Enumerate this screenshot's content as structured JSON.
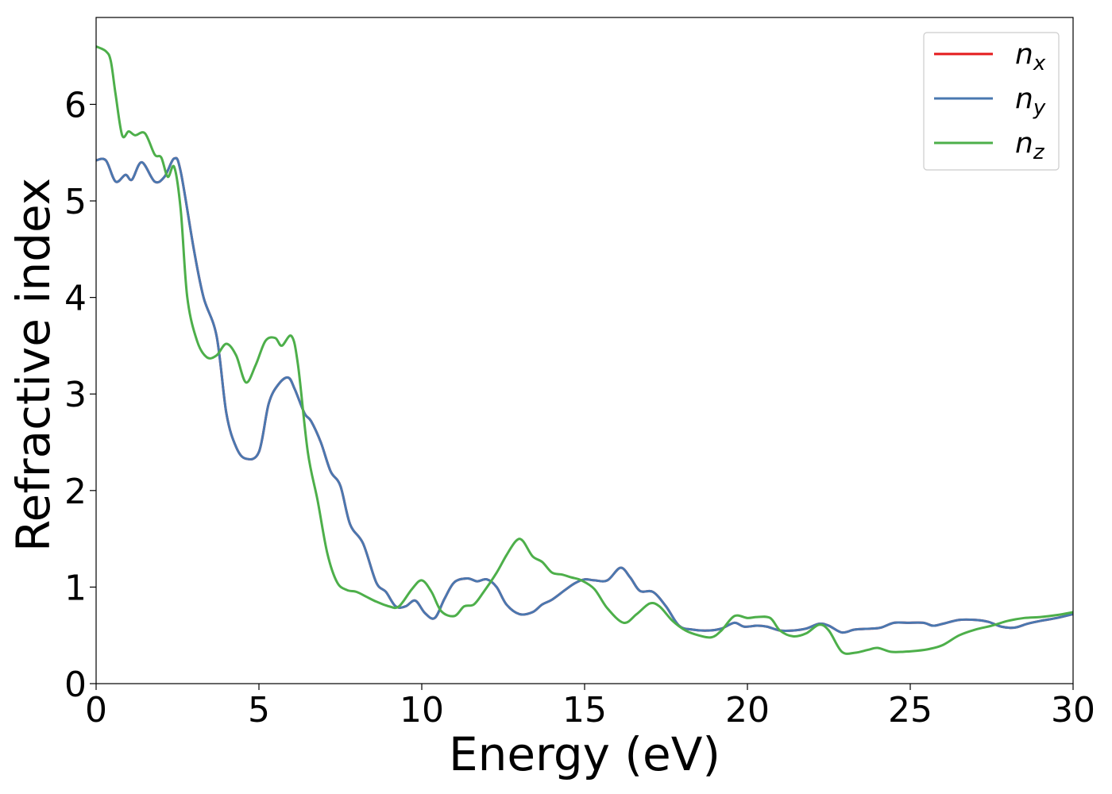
{
  "chart_data": {
    "type": "line",
    "xlabel": "Energy (eV)",
    "ylabel": "Refractive index",
    "xlim": [
      0,
      30
    ],
    "ylim": [
      0,
      6.9
    ],
    "grid": false,
    "legend_position": "top-right",
    "x_ticks": [
      0,
      5,
      10,
      15,
      20,
      25,
      30
    ],
    "y_ticks": [
      0,
      1,
      2,
      3,
      4,
      5,
      6
    ],
    "x_tick_labels": [
      "0",
      "5",
      "10",
      "15",
      "20",
      "25",
      "30"
    ],
    "y_tick_labels": [
      "0",
      "1",
      "2",
      "3",
      "4",
      "5",
      "6"
    ],
    "series": [
      {
        "name": "n_x",
        "label_base": "n",
        "label_sub": "x",
        "color": "#e41a1c",
        "points": [
          [
            0,
            5.42
          ],
          [
            0.3,
            5.42
          ],
          [
            0.6,
            5.2
          ],
          [
            0.9,
            5.27
          ],
          [
            1.1,
            5.22
          ],
          [
            1.4,
            5.4
          ],
          [
            1.8,
            5.2
          ],
          [
            2.1,
            5.25
          ],
          [
            2.4,
            5.44
          ],
          [
            2.6,
            5.3
          ],
          [
            3.0,
            4.5
          ],
          [
            3.3,
            4.0
          ],
          [
            3.7,
            3.6
          ],
          [
            4.0,
            2.8
          ],
          [
            4.3,
            2.45
          ],
          [
            4.6,
            2.33
          ],
          [
            5.0,
            2.4
          ],
          [
            5.3,
            2.9
          ],
          [
            5.6,
            3.1
          ],
          [
            5.9,
            3.17
          ],
          [
            6.1,
            3.05
          ],
          [
            6.4,
            2.8
          ],
          [
            6.6,
            2.72
          ],
          [
            6.9,
            2.5
          ],
          [
            7.2,
            2.2
          ],
          [
            7.5,
            2.05
          ],
          [
            7.8,
            1.65
          ],
          [
            8.2,
            1.45
          ],
          [
            8.6,
            1.05
          ],
          [
            8.9,
            0.95
          ],
          [
            9.2,
            0.8
          ],
          [
            9.5,
            0.8
          ],
          [
            9.8,
            0.86
          ],
          [
            10.1,
            0.73
          ],
          [
            10.4,
            0.68
          ],
          [
            10.7,
            0.88
          ],
          [
            11.0,
            1.05
          ],
          [
            11.4,
            1.09
          ],
          [
            11.7,
            1.06
          ],
          [
            12.0,
            1.08
          ],
          [
            12.3,
            1.0
          ],
          [
            12.6,
            0.82
          ],
          [
            13.0,
            0.72
          ],
          [
            13.4,
            0.74
          ],
          [
            13.7,
            0.82
          ],
          [
            14.0,
            0.87
          ],
          [
            14.4,
            0.97
          ],
          [
            14.7,
            1.04
          ],
          [
            15.0,
            1.08
          ],
          [
            15.3,
            1.07
          ],
          [
            15.7,
            1.07
          ],
          [
            16.1,
            1.2
          ],
          [
            16.4,
            1.1
          ],
          [
            16.7,
            0.96
          ],
          [
            17.1,
            0.95
          ],
          [
            17.5,
            0.8
          ],
          [
            17.9,
            0.6
          ],
          [
            18.3,
            0.56
          ],
          [
            18.8,
            0.55
          ],
          [
            19.2,
            0.57
          ],
          [
            19.6,
            0.63
          ],
          [
            19.9,
            0.59
          ],
          [
            20.3,
            0.6
          ],
          [
            20.6,
            0.59
          ],
          [
            21.0,
            0.55
          ],
          [
            21.4,
            0.55
          ],
          [
            21.8,
            0.57
          ],
          [
            22.2,
            0.62
          ],
          [
            22.5,
            0.6
          ],
          [
            22.9,
            0.53
          ],
          [
            23.3,
            0.56
          ],
          [
            23.8,
            0.57
          ],
          [
            24.1,
            0.58
          ],
          [
            24.5,
            0.63
          ],
          [
            24.9,
            0.63
          ],
          [
            25.4,
            0.63
          ],
          [
            25.7,
            0.6
          ],
          [
            26.0,
            0.62
          ],
          [
            26.5,
            0.66
          ],
          [
            27.0,
            0.66
          ],
          [
            27.4,
            0.64
          ],
          [
            27.8,
            0.59
          ],
          [
            28.2,
            0.58
          ],
          [
            28.6,
            0.62
          ],
          [
            29.0,
            0.65
          ],
          [
            29.5,
            0.68
          ],
          [
            30.0,
            0.72
          ]
        ]
      },
      {
        "name": "n_y",
        "label_base": "n",
        "label_sub": "y",
        "color": "#4a78b0",
        "points": [
          [
            0,
            5.42
          ],
          [
            0.3,
            5.42
          ],
          [
            0.6,
            5.2
          ],
          [
            0.9,
            5.27
          ],
          [
            1.1,
            5.22
          ],
          [
            1.4,
            5.4
          ],
          [
            1.8,
            5.2
          ],
          [
            2.1,
            5.25
          ],
          [
            2.4,
            5.44
          ],
          [
            2.6,
            5.3
          ],
          [
            3.0,
            4.5
          ],
          [
            3.3,
            4.0
          ],
          [
            3.7,
            3.6
          ],
          [
            4.0,
            2.8
          ],
          [
            4.3,
            2.45
          ],
          [
            4.6,
            2.33
          ],
          [
            5.0,
            2.4
          ],
          [
            5.3,
            2.9
          ],
          [
            5.6,
            3.1
          ],
          [
            5.9,
            3.17
          ],
          [
            6.1,
            3.05
          ],
          [
            6.4,
            2.8
          ],
          [
            6.6,
            2.72
          ],
          [
            6.9,
            2.5
          ],
          [
            7.2,
            2.2
          ],
          [
            7.5,
            2.05
          ],
          [
            7.8,
            1.65
          ],
          [
            8.2,
            1.45
          ],
          [
            8.6,
            1.05
          ],
          [
            8.9,
            0.95
          ],
          [
            9.2,
            0.8
          ],
          [
            9.5,
            0.8
          ],
          [
            9.8,
            0.86
          ],
          [
            10.1,
            0.73
          ],
          [
            10.4,
            0.68
          ],
          [
            10.7,
            0.88
          ],
          [
            11.0,
            1.05
          ],
          [
            11.4,
            1.09
          ],
          [
            11.7,
            1.06
          ],
          [
            12.0,
            1.08
          ],
          [
            12.3,
            1.0
          ],
          [
            12.6,
            0.82
          ],
          [
            13.0,
            0.72
          ],
          [
            13.4,
            0.74
          ],
          [
            13.7,
            0.82
          ],
          [
            14.0,
            0.87
          ],
          [
            14.4,
            0.97
          ],
          [
            14.7,
            1.04
          ],
          [
            15.0,
            1.08
          ],
          [
            15.3,
            1.07
          ],
          [
            15.7,
            1.07
          ],
          [
            16.1,
            1.2
          ],
          [
            16.4,
            1.1
          ],
          [
            16.7,
            0.96
          ],
          [
            17.1,
            0.95
          ],
          [
            17.5,
            0.8
          ],
          [
            17.9,
            0.6
          ],
          [
            18.3,
            0.56
          ],
          [
            18.8,
            0.55
          ],
          [
            19.2,
            0.57
          ],
          [
            19.6,
            0.63
          ],
          [
            19.9,
            0.59
          ],
          [
            20.3,
            0.6
          ],
          [
            20.6,
            0.59
          ],
          [
            21.0,
            0.55
          ],
          [
            21.4,
            0.55
          ],
          [
            21.8,
            0.57
          ],
          [
            22.2,
            0.62
          ],
          [
            22.5,
            0.6
          ],
          [
            22.9,
            0.53
          ],
          [
            23.3,
            0.56
          ],
          [
            23.8,
            0.57
          ],
          [
            24.1,
            0.58
          ],
          [
            24.5,
            0.63
          ],
          [
            24.9,
            0.63
          ],
          [
            25.4,
            0.63
          ],
          [
            25.7,
            0.6
          ],
          [
            26.0,
            0.62
          ],
          [
            26.5,
            0.66
          ],
          [
            27.0,
            0.66
          ],
          [
            27.4,
            0.64
          ],
          [
            27.8,
            0.59
          ],
          [
            28.2,
            0.58
          ],
          [
            28.6,
            0.62
          ],
          [
            29.0,
            0.65
          ],
          [
            29.5,
            0.68
          ],
          [
            30.0,
            0.72
          ]
        ]
      },
      {
        "name": "n_z",
        "label_base": "n",
        "label_sub": "z",
        "color": "#4daf4a",
        "points": [
          [
            0,
            6.6
          ],
          [
            0.3,
            6.55
          ],
          [
            0.45,
            6.45
          ],
          [
            0.6,
            6.1
          ],
          [
            0.8,
            5.68
          ],
          [
            1.0,
            5.72
          ],
          [
            1.2,
            5.68
          ],
          [
            1.5,
            5.7
          ],
          [
            1.8,
            5.48
          ],
          [
            2.0,
            5.45
          ],
          [
            2.2,
            5.25
          ],
          [
            2.4,
            5.35
          ],
          [
            2.6,
            4.9
          ],
          [
            2.8,
            4.0
          ],
          [
            3.1,
            3.55
          ],
          [
            3.4,
            3.38
          ],
          [
            3.7,
            3.4
          ],
          [
            4.0,
            3.52
          ],
          [
            4.3,
            3.4
          ],
          [
            4.6,
            3.12
          ],
          [
            4.9,
            3.3
          ],
          [
            5.2,
            3.55
          ],
          [
            5.5,
            3.58
          ],
          [
            5.7,
            3.5
          ],
          [
            6.0,
            3.6
          ],
          [
            6.2,
            3.3
          ],
          [
            6.5,
            2.4
          ],
          [
            6.8,
            1.9
          ],
          [
            7.1,
            1.35
          ],
          [
            7.4,
            1.05
          ],
          [
            7.7,
            0.97
          ],
          [
            8.0,
            0.95
          ],
          [
            8.3,
            0.9
          ],
          [
            8.6,
            0.85
          ],
          [
            9.0,
            0.8
          ],
          [
            9.3,
            0.8
          ],
          [
            9.7,
            0.98
          ],
          [
            10.0,
            1.07
          ],
          [
            10.3,
            0.95
          ],
          [
            10.6,
            0.75
          ],
          [
            11.0,
            0.7
          ],
          [
            11.3,
            0.8
          ],
          [
            11.6,
            0.82
          ],
          [
            11.9,
            0.95
          ],
          [
            12.3,
            1.15
          ],
          [
            12.6,
            1.33
          ],
          [
            12.9,
            1.48
          ],
          [
            13.1,
            1.48
          ],
          [
            13.4,
            1.32
          ],
          [
            13.7,
            1.26
          ],
          [
            14.0,
            1.15
          ],
          [
            14.3,
            1.13
          ],
          [
            14.6,
            1.1
          ],
          [
            14.9,
            1.07
          ],
          [
            15.3,
            0.98
          ],
          [
            15.7,
            0.78
          ],
          [
            16.2,
            0.63
          ],
          [
            16.6,
            0.72
          ],
          [
            17.0,
            0.83
          ],
          [
            17.3,
            0.8
          ],
          [
            17.7,
            0.65
          ],
          [
            18.1,
            0.55
          ],
          [
            18.5,
            0.5
          ],
          [
            18.9,
            0.48
          ],
          [
            19.2,
            0.55
          ],
          [
            19.6,
            0.7
          ],
          [
            20.0,
            0.68
          ],
          [
            20.3,
            0.69
          ],
          [
            20.7,
            0.68
          ],
          [
            21.0,
            0.55
          ],
          [
            21.4,
            0.49
          ],
          [
            21.8,
            0.52
          ],
          [
            22.2,
            0.61
          ],
          [
            22.5,
            0.55
          ],
          [
            22.9,
            0.33
          ],
          [
            23.3,
            0.32
          ],
          [
            23.7,
            0.35
          ],
          [
            24.0,
            0.37
          ],
          [
            24.4,
            0.33
          ],
          [
            24.8,
            0.33
          ],
          [
            25.2,
            0.34
          ],
          [
            25.6,
            0.36
          ],
          [
            26.0,
            0.4
          ],
          [
            26.5,
            0.5
          ],
          [
            27.0,
            0.56
          ],
          [
            27.5,
            0.6
          ],
          [
            28.0,
            0.65
          ],
          [
            28.5,
            0.68
          ],
          [
            29.0,
            0.69
          ],
          [
            29.5,
            0.71
          ],
          [
            30.0,
            0.74
          ]
        ]
      }
    ]
  }
}
